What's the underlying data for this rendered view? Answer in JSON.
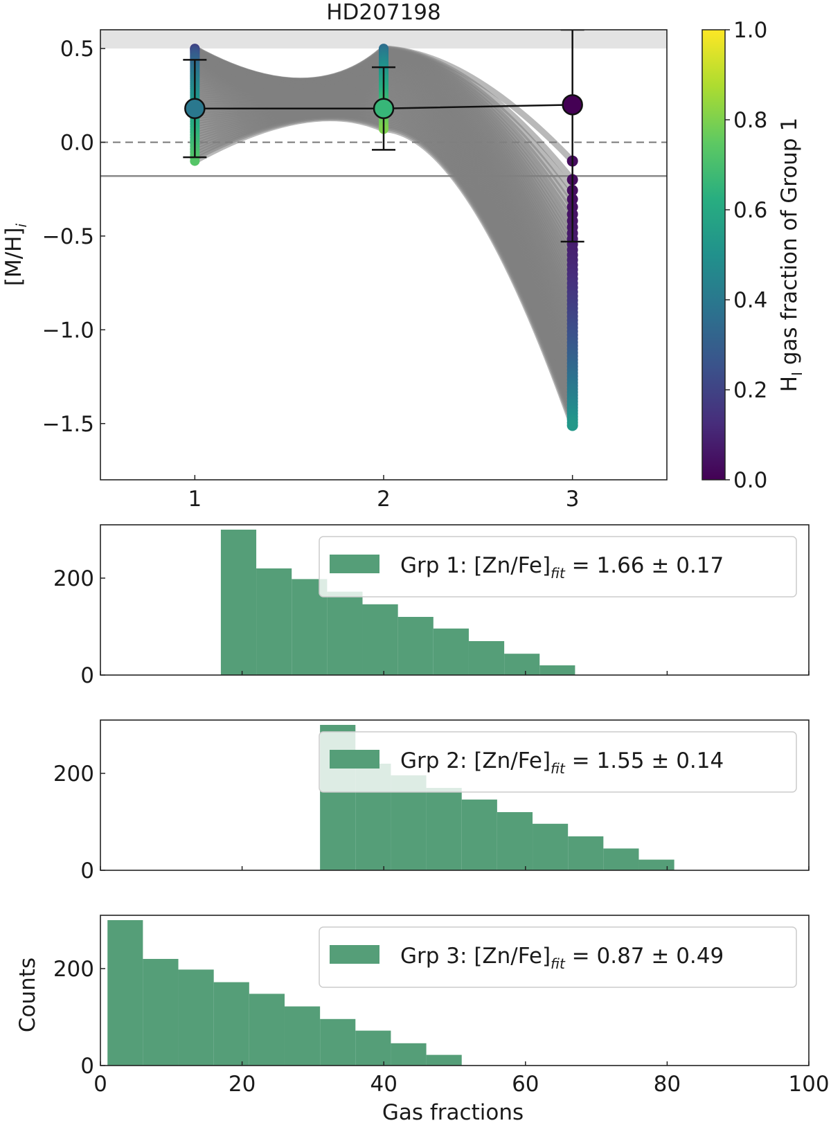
{
  "chart_data": [
    {
      "type": "scatter",
      "title": "HD207198",
      "xlabel": "",
      "ylabel_main": "[M/H]",
      "ylabel_sub": "i",
      "xlim": [
        0.5,
        3.5
      ],
      "ylim": [
        -1.8,
        0.6
      ],
      "xticks": [
        1,
        2,
        3
      ],
      "xtick_labels": [
        "1",
        "2",
        "3"
      ],
      "yticks": [
        0.5,
        0.0,
        -0.5,
        -1.0,
        -1.5
      ],
      "ytick_labels": [
        "0.5",
        "0.0",
        "−0.5",
        "−1.0",
        "−1.5"
      ],
      "shaded_band": [
        0.5,
        0.6
      ],
      "solar_dashed_line": 0.0,
      "solid_line": -0.18,
      "group_means": [
        {
          "x": 1,
          "y": 0.18,
          "err_low": 0.26,
          "err_high": 0.26,
          "frac": 0.4
        },
        {
          "x": 2,
          "y": 0.18,
          "err_low": 0.22,
          "err_high": 0.22,
          "frac": 0.66
        },
        {
          "x": 3,
          "y": 0.2,
          "err_low": 0.73,
          "err_high": 0.4,
          "frac": 0.0
        }
      ],
      "sample_range": {
        "g1": [
          0.5,
          -0.1
        ],
        "g2": [
          0.5,
          0.07
        ],
        "g3": [
          -0.1,
          -1.51
        ]
      },
      "colorbar": {
        "label_main": "H",
        "label_sub": "I",
        "label_rest": " gas fraction of Group 1",
        "ticks": [
          0.0,
          0.2,
          0.4,
          0.6,
          0.8,
          1.0
        ],
        "tick_labels": [
          "0.0",
          "0.2",
          "0.4",
          "0.6",
          "0.8",
          "1.0"
        ],
        "colormap": "viridis"
      }
    },
    {
      "type": "bar",
      "legend": {
        "prefix": "Grp 1: [Zn/Fe]",
        "sub": "fit",
        "suffix": " = 1.66 ± 0.17"
      },
      "bin_edges": [
        17,
        22,
        27,
        32,
        37,
        42,
        47,
        52,
        57,
        62,
        67
      ],
      "counts": [
        300,
        220,
        198,
        172,
        146,
        120,
        96,
        70,
        44,
        20
      ],
      "ylim": [
        0,
        310
      ],
      "yticks": [
        0,
        200
      ],
      "ytick_labels": [
        "0",
        "200"
      ],
      "color": "#559e78"
    },
    {
      "type": "bar",
      "legend": {
        "prefix": "Grp 2: [Zn/Fe]",
        "sub": "fit",
        "suffix": " = 1.55 ± 0.14"
      },
      "bin_edges": [
        31,
        36,
        41,
        46,
        51,
        56,
        61,
        66,
        71,
        76,
        81
      ],
      "counts": [
        300,
        220,
        196,
        170,
        146,
        120,
        96,
        70,
        45,
        22
      ],
      "ylim": [
        0,
        310
      ],
      "yticks": [
        0,
        200
      ],
      "ytick_labels": [
        "0",
        "200"
      ],
      "color": "#559e78"
    },
    {
      "type": "bar",
      "legend": {
        "prefix": "Grp 3: [Zn/Fe]",
        "sub": "fit",
        "suffix": " = 0.87 ± 0.49"
      },
      "bin_edges": [
        1,
        6,
        11,
        16,
        21,
        26,
        31,
        36,
        41,
        46,
        51
      ],
      "counts": [
        300,
        220,
        198,
        172,
        148,
        122,
        96,
        72,
        46,
        22
      ],
      "ylim": [
        0,
        310
      ],
      "yticks": [
        0,
        200
      ],
      "ytick_labels": [
        "0",
        "200"
      ],
      "xlim": [
        0,
        100
      ],
      "xticks": [
        0,
        20,
        40,
        60,
        80,
        100
      ],
      "xtick_labels": [
        "0",
        "20",
        "40",
        "60",
        "80",
        "100"
      ],
      "xlabel": "Gas fractions",
      "ylabel": "Counts",
      "color": "#559e78"
    }
  ]
}
